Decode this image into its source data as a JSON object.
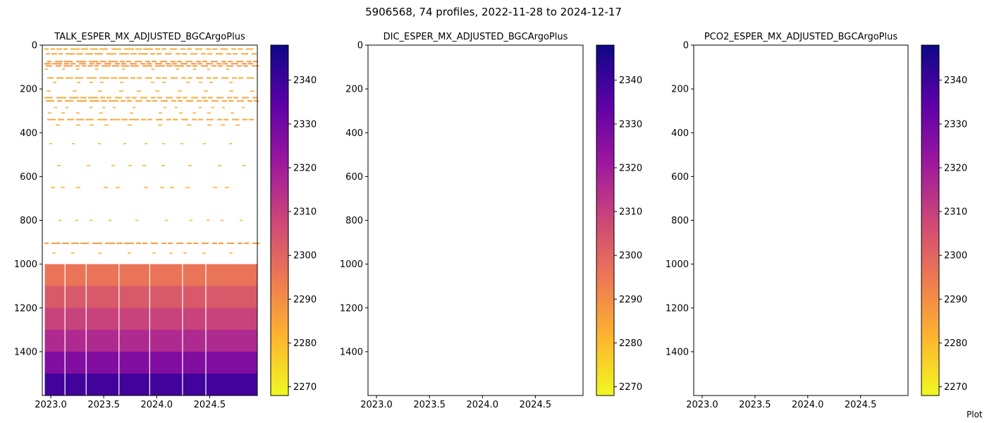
{
  "figure": {
    "suptitle": "5906568, 74 profiles, 2022-11-28 to 2024-12-17",
    "note": "Plot"
  },
  "colormap": {
    "name": "plasma_r",
    "stops": [
      "#f0f921",
      "#fdb42f",
      "#ed7953",
      "#cc4778",
      "#9c179e",
      "#5c01a6",
      "#0d0887"
    ]
  },
  "chart_data": [
    {
      "type": "heatmap",
      "title": "TALK_ESPER_MX_ADJUSTED_BGCArgoPlus",
      "xlabel": "",
      "ylabel": "",
      "x_ticks": [
        "2023.0",
        "2023.5",
        "2024.0",
        "2024.5"
      ],
      "x_tick_values": [
        2023.0,
        2023.5,
        2024.0,
        2024.5
      ],
      "xlim": [
        2022.92,
        2024.95
      ],
      "y_ticks": [
        "0",
        "200",
        "400",
        "600",
        "800",
        "1000",
        "1200",
        "1400"
      ],
      "y_tick_values": [
        0,
        200,
        400,
        600,
        800,
        1000,
        1200,
        1400
      ],
      "ylim": [
        1600,
        0
      ],
      "y_inverted": true,
      "colorbar_ticks": [
        "2270",
        "2280",
        "2290",
        "2300",
        "2310",
        "2320",
        "2330",
        "2340"
      ],
      "colorbar_tick_values": [
        2270,
        2280,
        2290,
        2300,
        2310,
        2320,
        2330,
        2340
      ],
      "clim": [
        2268,
        2348
      ],
      "profile_times": [
        2022.93,
        2023.13,
        2023.33,
        2023.64,
        2023.93,
        2024.24,
        2024.46,
        2024.92
      ],
      "deep_bands": [
        {
          "depth_from": 1000,
          "depth_to": 1100,
          "value": 2296
        },
        {
          "depth_from": 1100,
          "depth_to": 1200,
          "value": 2303
        },
        {
          "depth_from": 1200,
          "depth_to": 1300,
          "value": 2309
        },
        {
          "depth_from": 1300,
          "depth_to": 1400,
          "value": 2316
        },
        {
          "depth_from": 1400,
          "depth_to": 1500,
          "value": 2327
        },
        {
          "depth_from": 1500,
          "depth_to": 1600,
          "value": 2339
        }
      ],
      "shallow_layers": [
        {
          "depth": 18,
          "value": 2283
        },
        {
          "depth": 40,
          "value": 2284
        },
        {
          "depth": 75,
          "value": 2287
        },
        {
          "depth": 85,
          "value": 2289
        },
        {
          "depth": 95,
          "value": 2287
        },
        {
          "depth": 150,
          "value": 2284
        },
        {
          "depth": 240,
          "value": 2284
        },
        {
          "depth": 255,
          "value": 2285
        },
        {
          "depth": 340,
          "value": 2284
        },
        {
          "depth": 905,
          "value": 2287
        }
      ],
      "sparse_layers": [
        {
          "depth": 110,
          "value": 2284
        },
        {
          "depth": 170,
          "value": 2283
        },
        {
          "depth": 210,
          "value": 2283
        },
        {
          "depth": 285,
          "value": 2283
        },
        {
          "depth": 310,
          "value": 2283
        },
        {
          "depth": 365,
          "value": 2283
        },
        {
          "depth": 450,
          "value": 2281
        },
        {
          "depth": 550,
          "value": 2281
        },
        {
          "depth": 650,
          "value": 2281
        },
        {
          "depth": 800,
          "value": 2281
        },
        {
          "depth": 950,
          "value": 2281
        }
      ]
    },
    {
      "type": "heatmap",
      "title": "DIC_ESPER_MX_ADJUSTED_BGCArgoPlus",
      "xlabel": "",
      "ylabel": "",
      "x_ticks": [
        "2023.0",
        "2023.5",
        "2024.0",
        "2024.5"
      ],
      "x_tick_values": [
        2023.0,
        2023.5,
        2024.0,
        2024.5
      ],
      "xlim": [
        2022.92,
        2024.95
      ],
      "y_ticks": [
        "0",
        "200",
        "400",
        "600",
        "800",
        "1000",
        "1200",
        "1400"
      ],
      "y_tick_values": [
        0,
        200,
        400,
        600,
        800,
        1000,
        1200,
        1400
      ],
      "ylim": [
        1600,
        0
      ],
      "y_inverted": true,
      "colorbar_ticks": [
        "2270",
        "2280",
        "2290",
        "2300",
        "2310",
        "2320",
        "2330",
        "2340"
      ],
      "colorbar_tick_values": [
        2270,
        2280,
        2290,
        2300,
        2310,
        2320,
        2330,
        2340
      ],
      "clim": [
        2268,
        2348
      ],
      "empty": true
    },
    {
      "type": "heatmap",
      "title": "PCO2_ESPER_MX_ADJUSTED_BGCArgoPlus",
      "xlabel": "",
      "ylabel": "",
      "x_ticks": [
        "2023.0",
        "2023.5",
        "2024.0",
        "2024.5"
      ],
      "x_tick_values": [
        2023.0,
        2023.5,
        2024.0,
        2024.5
      ],
      "xlim": [
        2022.92,
        2024.95
      ],
      "y_ticks": [
        "0",
        "200",
        "400",
        "600",
        "800",
        "1000",
        "1200",
        "1400"
      ],
      "y_tick_values": [
        0,
        200,
        400,
        600,
        800,
        1000,
        1200,
        1400
      ],
      "ylim": [
        1600,
        0
      ],
      "y_inverted": true,
      "colorbar_ticks": [
        "2270",
        "2280",
        "2290",
        "2300",
        "2310",
        "2320",
        "2330",
        "2340"
      ],
      "colorbar_tick_values": [
        2270,
        2280,
        2290,
        2300,
        2310,
        2320,
        2330,
        2340
      ],
      "clim": [
        2268,
        2348
      ],
      "empty": true
    }
  ]
}
